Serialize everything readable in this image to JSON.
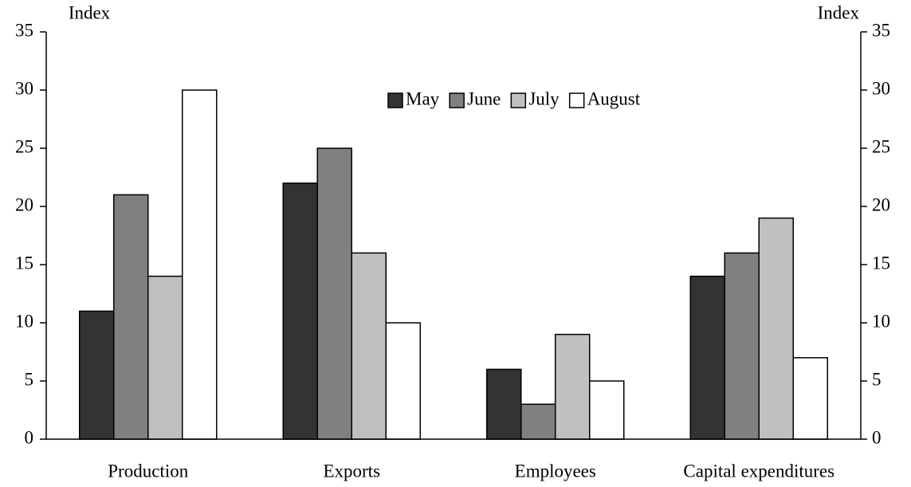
{
  "chart_data": {
    "type": "bar",
    "y_label": "Index",
    "y2_label": "Index",
    "categories": [
      "Production",
      "Exports",
      "Employees",
      "Capital expenditures"
    ],
    "series": [
      {
        "name": "May",
        "color": "#333333",
        "values": [
          11,
          22,
          6,
          14
        ]
      },
      {
        "name": "June",
        "color": "#808080",
        "values": [
          21,
          25,
          3,
          16
        ]
      },
      {
        "name": "July",
        "color": "#c0c0c0",
        "values": [
          14,
          16,
          9,
          19
        ]
      },
      {
        "name": "August",
        "color": "#ffffff",
        "values": [
          30,
          10,
          5,
          7
        ]
      }
    ],
    "ylim": [
      0,
      35
    ],
    "yticks": [
      0,
      5,
      10,
      15,
      20,
      25,
      30,
      35
    ],
    "y2lim": [
      0,
      35
    ],
    "y2ticks": [
      0,
      5,
      10,
      15,
      20,
      25,
      30,
      35
    ],
    "legend": "top-center",
    "grid": false
  }
}
